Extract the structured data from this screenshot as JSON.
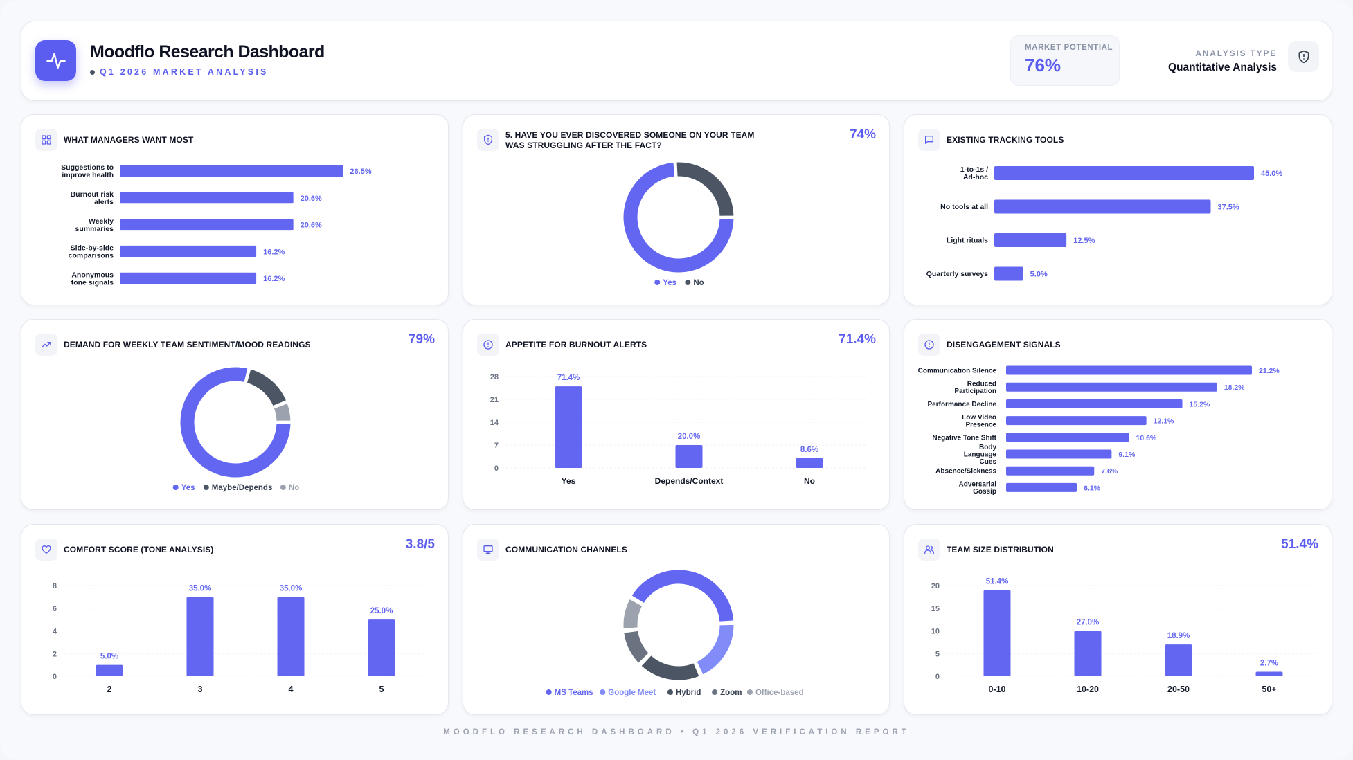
{
  "header": {
    "title": "Moodflo Research Dashboard",
    "subtitle": "Q1 2026 MARKET ANALYSIS",
    "market_potential_label": "MARKET POTENTIAL",
    "market_potential_value": "76%",
    "analysis_type_label": "ANALYSIS TYPE",
    "analysis_type_value": "Quantitative Analysis"
  },
  "footer": "MOODFLO RESEARCH DASHBOARD • Q1 2026 VERIFICATION REPORT",
  "colors": {
    "primary": "#6366f1",
    "dark": "#4b5563",
    "medium": "#9ca3af",
    "light": "#818cf8",
    "slate": "#6b7280"
  },
  "cards": [
    {
      "id": "managers",
      "title": "WHAT MANAGERS WANT MOST",
      "icon": "grid-icon",
      "stat": "",
      "chart_data": {
        "type": "bar",
        "orientation": "horizontal",
        "categories": [
          "Suggestions to improve health",
          "Burnout risk alerts",
          "Weekly summaries",
          "Side-by-side comparisons",
          "Anonymous tone signals"
        ],
        "labels": [
          [
            "Suggestions to",
            "improve health"
          ],
          [
            "Burnout risk",
            "alerts"
          ],
          [
            "Weekly",
            "summaries"
          ],
          [
            "Side-by-side",
            "comparisons"
          ],
          [
            "Anonymous",
            "tone signals"
          ]
        ],
        "values": [
          26.5,
          20.6,
          20.6,
          16.2,
          16.2
        ],
        "value_labels": [
          "26.5%",
          "20.6%",
          "20.6%",
          "16.2%",
          "16.2%"
        ],
        "xmax": 30
      }
    },
    {
      "id": "struggling",
      "title": "5. HAVE YOU EVER DISCOVERED SOMEONE ON YOUR TEAM WAS STRUGGLING AFTER THE FACT?",
      "icon": "shield-icon",
      "stat": "74%",
      "chart_data": {
        "type": "pie",
        "categories": [
          "Yes",
          "No"
        ],
        "values": [
          74,
          26
        ],
        "colors": [
          "#6366f1",
          "#4b5563"
        ]
      }
    },
    {
      "id": "tools",
      "title": "EXISTING TRACKING TOOLS",
      "icon": "message-icon",
      "stat": "",
      "chart_data": {
        "type": "bar",
        "orientation": "horizontal",
        "categories": [
          "1-to-1s / Ad-hoc",
          "No tools at all",
          "Light rituals",
          "Quarterly surveys"
        ],
        "labels": [
          [
            "1-to-1s /",
            "Ad-hoc"
          ],
          [
            "No tools at all"
          ],
          [
            "Light rituals"
          ],
          [
            "Quarterly surveys"
          ]
        ],
        "values": [
          45.0,
          37.5,
          12.5,
          5.0
        ],
        "value_labels": [
          "45.0%",
          "37.5%",
          "12.5%",
          "5.0%"
        ],
        "xmax": 45
      }
    },
    {
      "id": "demand",
      "title": "DEMAND FOR WEEKLY TEAM SENTIMENT/MOOD READINGS",
      "icon": "trending-up-icon",
      "stat": "79%",
      "chart_data": {
        "type": "pie",
        "categories": [
          "Yes",
          "Maybe/Depends",
          "No"
        ],
        "values": [
          79,
          15,
          6
        ],
        "colors": [
          "#6366f1",
          "#4b5563",
          "#9ca3af"
        ]
      }
    },
    {
      "id": "burnout",
      "title": "APPETITE FOR BURNOUT ALERTS",
      "icon": "alert-circle-icon",
      "stat": "71.4%",
      "chart_data": {
        "type": "bar",
        "categories": [
          "Yes",
          "Depends/Context",
          "No"
        ],
        "values": [
          71.4,
          20.0,
          8.6
        ],
        "counts": [
          25,
          7,
          3
        ],
        "value_labels": [
          "71.4%",
          "20.0%",
          "8.6%"
        ],
        "yticks": [
          "0",
          "7",
          "14",
          "21",
          "28"
        ],
        "ylim": [
          0,
          28
        ]
      }
    },
    {
      "id": "disengage",
      "title": "DISENGAGEMENT SIGNALS",
      "icon": "alert-circle-icon",
      "stat": "",
      "chart_data": {
        "type": "bar",
        "orientation": "horizontal",
        "categories": [
          "Communication Silence",
          "Reduced Participation",
          "Performance Decline",
          "Low Video Presence",
          "Negative Tone Shift",
          "Body Language Cues",
          "Absence/Sickness",
          "Adversarial Gossip"
        ],
        "labels": [
          [
            "Communication Silence"
          ],
          [
            "Reduced",
            "Participation"
          ],
          [
            "Performance Decline"
          ],
          [
            "Low Video",
            "Presence"
          ],
          [
            "Negative Tone Shift"
          ],
          [
            "Body",
            "Language",
            "Cues"
          ],
          [
            "Absence/Sickness"
          ],
          [
            "Adversarial",
            "Gossip"
          ]
        ],
        "values": [
          21.2,
          18.2,
          15.2,
          12.1,
          10.6,
          9.1,
          7.6,
          6.1
        ],
        "value_labels": [
          "21.2%",
          "18.2%",
          "15.2%",
          "12.1%",
          "10.6%",
          "9.1%",
          "7.6%",
          "6.1%"
        ],
        "xmax": 21.2
      }
    },
    {
      "id": "comfort",
      "title": "COMFORT SCORE (TONE ANALYSIS)",
      "icon": "heart-icon",
      "stat": "3.8/5",
      "chart_data": {
        "type": "bar",
        "categories": [
          "2",
          "3",
          "4",
          "5"
        ],
        "values": [
          5.0,
          35.0,
          35.0,
          25.0
        ],
        "counts": [
          1,
          7,
          7,
          5
        ],
        "value_labels": [
          "5.0%",
          "35.0%",
          "35.0%",
          "25.0%"
        ],
        "yticks": [
          "0",
          "2",
          "4",
          "6",
          "8"
        ],
        "ylim": [
          0,
          8
        ]
      }
    },
    {
      "id": "channels",
      "title": "COMMUNICATION CHANNELS",
      "icon": "monitor-icon",
      "stat": "",
      "chart_data": {
        "type": "pie",
        "categories": [
          "MS Teams",
          "Google Meet",
          "Hybrid",
          "Zoom",
          "Office-based"
        ],
        "values": [
          41,
          19,
          19,
          11,
          10
        ],
        "colors": [
          "#6366f1",
          "#818cf8",
          "#4b5563",
          "#6b7280",
          "#9ca3af"
        ]
      }
    },
    {
      "id": "teamsize",
      "title": "TEAM SIZE DISTRIBUTION",
      "icon": "users-icon",
      "stat": "51.4%",
      "chart_data": {
        "type": "bar",
        "categories": [
          "0-10",
          "10-20",
          "20-50",
          "50+"
        ],
        "values": [
          51.4,
          27.0,
          18.9,
          2.7
        ],
        "counts": [
          19,
          10,
          7,
          1
        ],
        "value_labels": [
          "51.4%",
          "27.0%",
          "18.9%",
          "2.7%"
        ],
        "yticks": [
          "0",
          "5",
          "10",
          "15",
          "20"
        ],
        "ylim": [
          0,
          20
        ]
      }
    }
  ]
}
